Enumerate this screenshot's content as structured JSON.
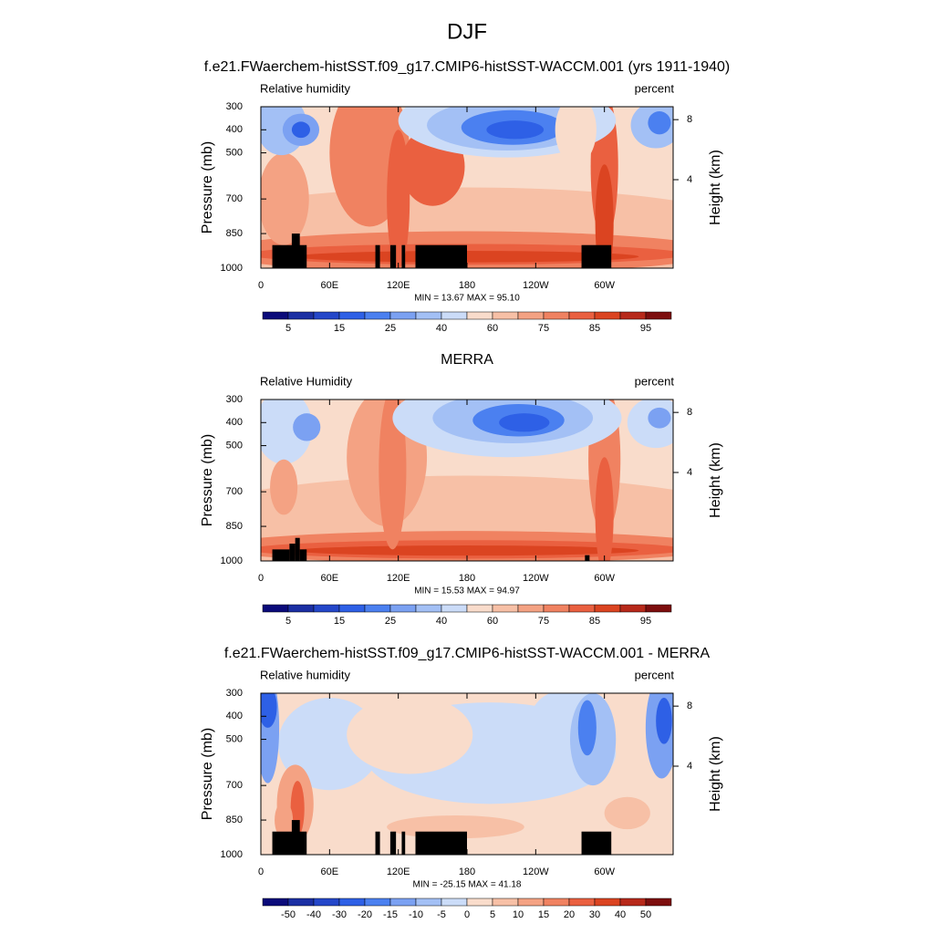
{
  "title": "DJF",
  "chart_data": [
    {
      "type": "contour",
      "title": "f.e21.FWaerchem-histSST.f09_g17.CMIP6-histSST-WACCM.001 (yrs 1911-1940)",
      "left_label": "Relative humidity",
      "right_label": "percent",
      "y_axis_label": "Pressure (mb)",
      "y2_axis_label": "Height (km)",
      "xlim": [
        0,
        360
      ],
      "xticks": [
        0,
        {
          "value": 60,
          "label": "60E"
        },
        {
          "value": 120,
          "label": "120E"
        },
        180,
        {
          "value": 240,
          "label": "120W"
        },
        {
          "value": 300,
          "label": "60W"
        }
      ],
      "ylim": [
        1000,
        300
      ],
      "yticks": [
        300,
        400,
        500,
        700,
        850,
        1000
      ],
      "y2ticks": [
        8,
        4
      ],
      "stats": "MIN =  13.67  MAX =  95.10",
      "colorbar": {
        "labels": [
          5,
          15,
          25,
          40,
          60,
          75,
          85,
          95
        ],
        "colors": [
          "#0b0b7a",
          "#1b2fa3",
          "#2447c9",
          "#2e60e6",
          "#4b80f0",
          "#7ba1f2",
          "#a3c0f5",
          "#cbdcf8",
          "#f9dccb",
          "#f7c0a6",
          "#f4a283",
          "#f08261",
          "#ea6040",
          "#db4421",
          "#b7291a",
          "#7d0e0e"
        ]
      }
    },
    {
      "type": "contour",
      "title": "MERRA",
      "left_label": "Relative Humidity",
      "right_label": "percent",
      "y_axis_label": "Pressure (mb)",
      "y2_axis_label": "Height (km)",
      "xlim": [
        0,
        360
      ],
      "xticks": [
        0,
        {
          "value": 60,
          "label": "60E"
        },
        {
          "value": 120,
          "label": "120E"
        },
        180,
        {
          "value": 240,
          "label": "120W"
        },
        {
          "value": 300,
          "label": "60W"
        }
      ],
      "ylim": [
        1000,
        300
      ],
      "yticks": [
        300,
        400,
        500,
        700,
        850,
        1000
      ],
      "y2ticks": [
        8,
        4
      ],
      "stats": "MIN =  15.53  MAX =  94.97",
      "colorbar": {
        "labels": [
          5,
          15,
          25,
          40,
          60,
          75,
          85,
          95
        ],
        "colors": [
          "#0b0b7a",
          "#1b2fa3",
          "#2447c9",
          "#2e60e6",
          "#4b80f0",
          "#7ba1f2",
          "#a3c0f5",
          "#cbdcf8",
          "#f9dccb",
          "#f7c0a6",
          "#f4a283",
          "#f08261",
          "#ea6040",
          "#db4421",
          "#b7291a",
          "#7d0e0e"
        ]
      }
    },
    {
      "type": "contour",
      "title": "f.e21.FWaerchem-histSST.f09_g17.CMIP6-histSST-WACCM.001 - MERRA",
      "left_label": "Relative humidity",
      "right_label": "percent",
      "y_axis_label": "Pressure (mb)",
      "y2_axis_label": "Height (km)",
      "xlim": [
        0,
        360
      ],
      "xticks": [
        0,
        {
          "value": 60,
          "label": "60E"
        },
        {
          "value": 120,
          "label": "120E"
        },
        180,
        {
          "value": 240,
          "label": "120W"
        },
        {
          "value": 300,
          "label": "60W"
        }
      ],
      "ylim": [
        1000,
        300
      ],
      "yticks": [
        300,
        400,
        500,
        700,
        850,
        1000
      ],
      "y2ticks": [
        8,
        4
      ],
      "stats": "MIN = -25.15  MAX =  41.18",
      "colorbar": {
        "labels": [
          -50,
          -40,
          -30,
          -20,
          -15,
          -10,
          -5,
          0,
          5,
          10,
          15,
          20,
          30,
          40,
          50
        ],
        "colors": [
          "#0b0b7a",
          "#1b2fa3",
          "#2447c9",
          "#2e60e6",
          "#4b80f0",
          "#7ba1f2",
          "#a3c0f5",
          "#cbdcf8",
          "#f9dccb",
          "#f7c0a6",
          "#f4a283",
          "#f08261",
          "#ea6040",
          "#db4421",
          "#b7291a",
          "#7d0e0e"
        ]
      }
    }
  ]
}
